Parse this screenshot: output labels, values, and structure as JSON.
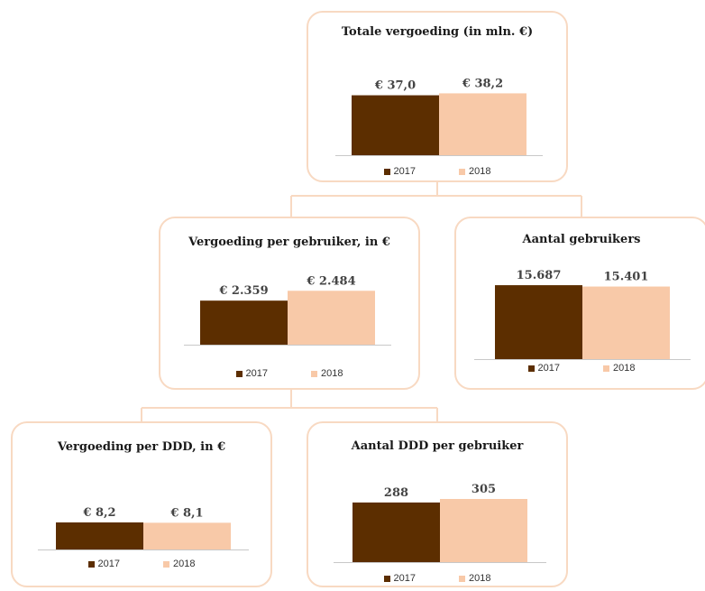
{
  "colors": {
    "y2017": "#5c2e00",
    "y2018": "#f8c9a8",
    "border": "#f8d9c2",
    "axis": "#c8c8c8"
  },
  "chart_data": [
    {
      "id": "totale-vergoeding",
      "type": "bar",
      "title": "Totale vergoeding (in mln. €)",
      "categories": [
        "2017",
        "2018"
      ],
      "values": [
        37.0,
        38.2
      ],
      "value_labels": [
        "€ 37,0",
        "€ 38,2"
      ],
      "legend": [
        "2017",
        "2018"
      ]
    },
    {
      "id": "vergoeding-per-gebruiker",
      "type": "bar",
      "title": "Vergoeding per gebruiker, in €",
      "categories": [
        "2017",
        "2018"
      ],
      "values": [
        2359,
        2484
      ],
      "value_labels": [
        "€ 2.359",
        "€ 2.484"
      ],
      "legend": [
        "2017",
        "2018"
      ]
    },
    {
      "id": "aantal-gebruikers",
      "type": "bar",
      "title": "Aantal gebruikers",
      "categories": [
        "2017",
        "2018"
      ],
      "values": [
        15687,
        15401
      ],
      "value_labels": [
        "15.687",
        "15.401"
      ],
      "legend": [
        "2017",
        "2018"
      ]
    },
    {
      "id": "vergoeding-per-ddd",
      "type": "bar",
      "title": "Vergoeding per DDD, in €",
      "categories": [
        "2017",
        "2018"
      ],
      "values": [
        8.2,
        8.1
      ],
      "value_labels": [
        "€ 8,2",
        "€ 8,1"
      ],
      "legend": [
        "2017",
        "2018"
      ]
    },
    {
      "id": "aantal-ddd-per-gebruiker",
      "type": "bar",
      "title": "Aantal DDD per gebruiker",
      "categories": [
        "2017",
        "2018"
      ],
      "values": [
        288,
        305
      ],
      "value_labels": [
        "288",
        "305"
      ],
      "legend": [
        "2017",
        "2018"
      ]
    }
  ]
}
